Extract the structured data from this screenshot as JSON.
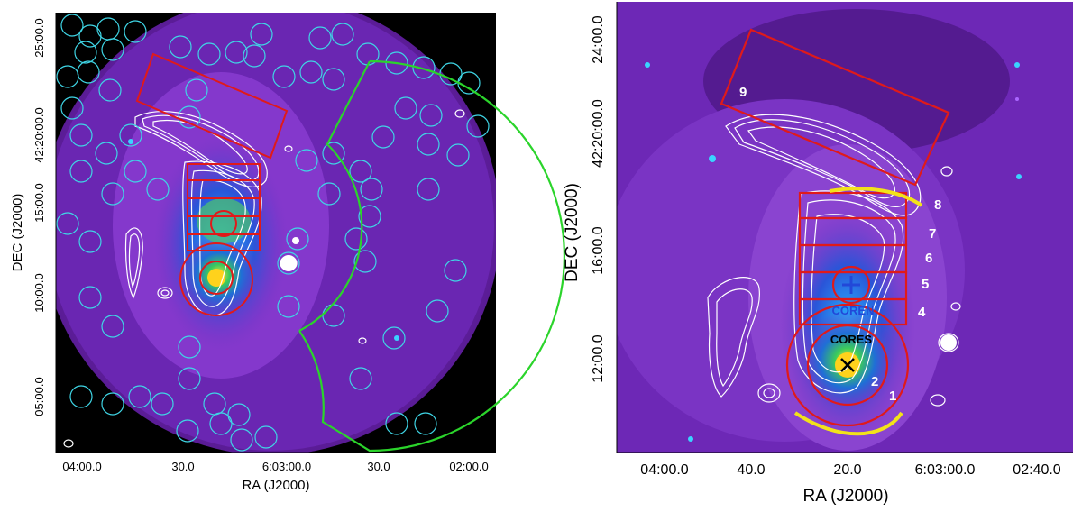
{
  "left_panel": {
    "x_axis_title": "RA (J2000)",
    "y_axis_title": "DEC (J2000)",
    "x_ticks": [
      "04:00.0",
      "30.0",
      "6:03:00.0",
      "30.0",
      "02:00.0"
    ],
    "y_ticks": [
      "25:00.0",
      "42:20:00.0",
      "15:00.0",
      "10:00.0",
      "05:00.0"
    ]
  },
  "right_panel": {
    "x_axis_title": "RA (J2000)",
    "y_axis_title": "DEC (J2000)",
    "x_ticks": [
      "04:00.0",
      "40.0",
      "20.0",
      "6:03:00.0",
      "02:40.0"
    ],
    "y_ticks": [
      "24:00.0",
      "42:20:00.0",
      "16:00.0",
      "12:00.0"
    ],
    "region_labels": [
      "1",
      "2",
      "4",
      "5",
      "6",
      "7",
      "8",
      "9"
    ],
    "core_labels": {
      "north": "COREN",
      "south": "CORES"
    }
  },
  "colors": {
    "background_purple": "#7b2fc4",
    "dark_purple": "#3a1063",
    "region_red": "#e01a1a",
    "sector_green": "#2bd42b",
    "source_cyan": "#3fd6e6",
    "arc_yellow": "#f2e21a",
    "contour_white": "#ffffff"
  }
}
